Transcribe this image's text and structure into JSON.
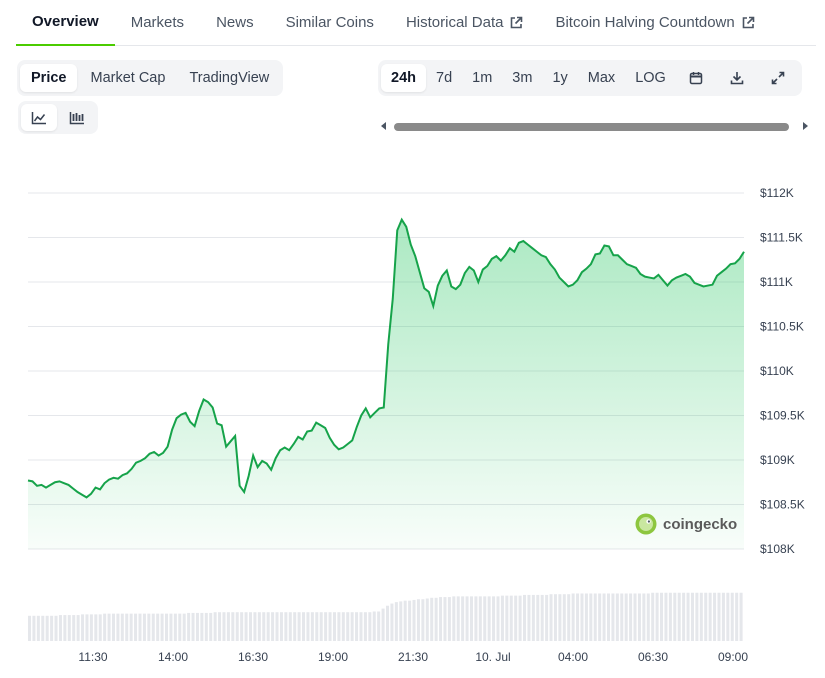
{
  "tabs": [
    {
      "label": "Overview",
      "active": true,
      "external": false
    },
    {
      "label": "Markets",
      "active": false,
      "external": false
    },
    {
      "label": "News",
      "active": false,
      "external": false
    },
    {
      "label": "Similar Coins",
      "active": false,
      "external": false
    },
    {
      "label": "Historical Data",
      "active": false,
      "external": true
    },
    {
      "label": "Bitcoin Halving Countdown",
      "active": false,
      "external": true
    }
  ],
  "chart_type_toggle": {
    "price": "Price",
    "market_cap": "Market Cap",
    "tradingview": "TradingView",
    "selected": "Price"
  },
  "chart_style_toggle": {
    "line": "line-chart-icon",
    "candle": "candlestick-icon",
    "selected": "line"
  },
  "range_toggle": {
    "h24": "24h",
    "d7": "7d",
    "m1": "1m",
    "m3": "3m",
    "y1": "1y",
    "max": "Max",
    "log": "LOG",
    "selected": "24h"
  },
  "toolbar_icons": [
    "calendar-icon",
    "download-icon",
    "expand-icon"
  ],
  "watermark": "coingecko",
  "colors": {
    "line": "#16a34a",
    "accent": "#4bcc00",
    "volume": "#e5e7eb"
  },
  "chart_data": {
    "type": "area",
    "x_tick_labels": [
      "11:30",
      "14:00",
      "16:30",
      "19:00",
      "21:30",
      "10. Jul",
      "04:00",
      "06:30",
      "09:00"
    ],
    "y_tick_labels": [
      "$112K",
      "$111.5K",
      "$111K",
      "$110.5K",
      "$110K",
      "$109.5K",
      "$109K",
      "$108.5K",
      "$108K"
    ],
    "ylim": [
      108000,
      112000
    ],
    "ylim_label": "price in USD",
    "grid": true,
    "series": [
      {
        "values": [
          108770,
          108760,
          108710,
          108720,
          108690,
          108720,
          108750,
          108760,
          108740,
          108720,
          108680,
          108640,
          108610,
          108580,
          108620,
          108690,
          108670,
          108740,
          108780,
          108800,
          108790,
          108830,
          108850,
          108900,
          108970,
          108990,
          109020,
          109070,
          109090,
          109050,
          109080,
          109150,
          109340,
          109470,
          109510,
          109530,
          109430,
          109380,
          109550,
          109680,
          109650,
          109590,
          109410,
          109390,
          109150,
          109210,
          109270,
          108710,
          108640,
          108820,
          109050,
          108920,
          108990,
          108960,
          108890,
          109020,
          109110,
          109140,
          109110,
          109180,
          109260,
          109230,
          109320,
          109330,
          109420,
          109390,
          109360,
          109250,
          109170,
          109120,
          109140,
          109180,
          109220,
          109370,
          109500,
          109580,
          109480,
          109530,
          109580,
          109590,
          110300,
          110810,
          111580,
          111700,
          111620,
          111420,
          111290,
          111110,
          110930,
          110890,
          110730,
          110960,
          111070,
          111130,
          110950,
          110920,
          110970,
          111100,
          111170,
          111130,
          111000,
          111140,
          111180,
          111260,
          111290,
          111240,
          111300,
          111380,
          111340,
          111440,
          111460,
          111420,
          111380,
          111340,
          111300,
          111280,
          111200,
          111140,
          111050,
          111000,
          110950,
          110970,
          111020,
          111110,
          111150,
          111200,
          111310,
          111320,
          111410,
          111400,
          111300,
          111300,
          111250,
          111200,
          111180,
          111160,
          111090,
          111060,
          111050,
          111040,
          111080,
          111020,
          110960,
          111020,
          111050,
          111070,
          111090,
          111060,
          110990,
          110970,
          110950,
          110960,
          110970,
          111070,
          111110,
          111150,
          111200,
          111210,
          111260,
          111340
        ]
      }
    ],
    "volume": [
      0.35,
      0.35,
      0.35,
      0.35,
      0.35,
      0.35,
      0.35,
      0.36,
      0.36,
      0.36,
      0.36,
      0.36,
      0.37,
      0.37,
      0.37,
      0.37,
      0.37,
      0.38,
      0.38,
      0.38,
      0.38,
      0.38,
      0.38,
      0.38,
      0.38,
      0.38,
      0.38,
      0.38,
      0.38,
      0.38,
      0.38,
      0.38,
      0.38,
      0.38,
      0.38,
      0.38,
      0.39,
      0.39,
      0.39,
      0.39,
      0.39,
      0.39,
      0.4,
      0.4,
      0.4,
      0.4,
      0.4,
      0.4,
      0.4,
      0.4,
      0.4,
      0.4,
      0.4,
      0.4,
      0.4,
      0.4,
      0.4,
      0.4,
      0.4,
      0.4,
      0.4,
      0.4,
      0.4,
      0.4,
      0.4,
      0.4,
      0.4,
      0.4,
      0.4,
      0.4,
      0.4,
      0.4,
      0.4,
      0.4,
      0.4,
      0.4,
      0.4,
      0.4,
      0.41,
      0.41,
      0.45,
      0.49,
      0.52,
      0.54,
      0.55,
      0.56,
      0.56,
      0.57,
      0.58,
      0.58,
      0.59,
      0.6,
      0.6,
      0.61,
      0.61,
      0.61,
      0.62,
      0.62,
      0.62,
      0.62,
      0.62,
      0.62,
      0.62,
      0.62,
      0.62,
      0.62,
      0.62,
      0.63,
      0.63,
      0.63,
      0.63,
      0.63,
      0.64,
      0.64,
      0.64,
      0.64,
      0.64,
      0.64,
      0.65,
      0.65,
      0.65,
      0.65,
      0.65,
      0.66,
      0.66,
      0.66,
      0.66,
      0.66,
      0.66,
      0.66,
      0.66,
      0.66,
      0.66,
      0.66,
      0.66,
      0.66,
      0.66,
      0.66,
      0.66,
      0.66,
      0.66,
      0.67,
      0.67,
      0.67,
      0.67,
      0.67,
      0.67,
      0.67,
      0.67,
      0.67,
      0.67,
      0.67,
      0.67,
      0.67,
      0.67,
      0.67,
      0.67,
      0.67,
      0.67,
      0.67,
      0.67,
      0.67
    ]
  }
}
